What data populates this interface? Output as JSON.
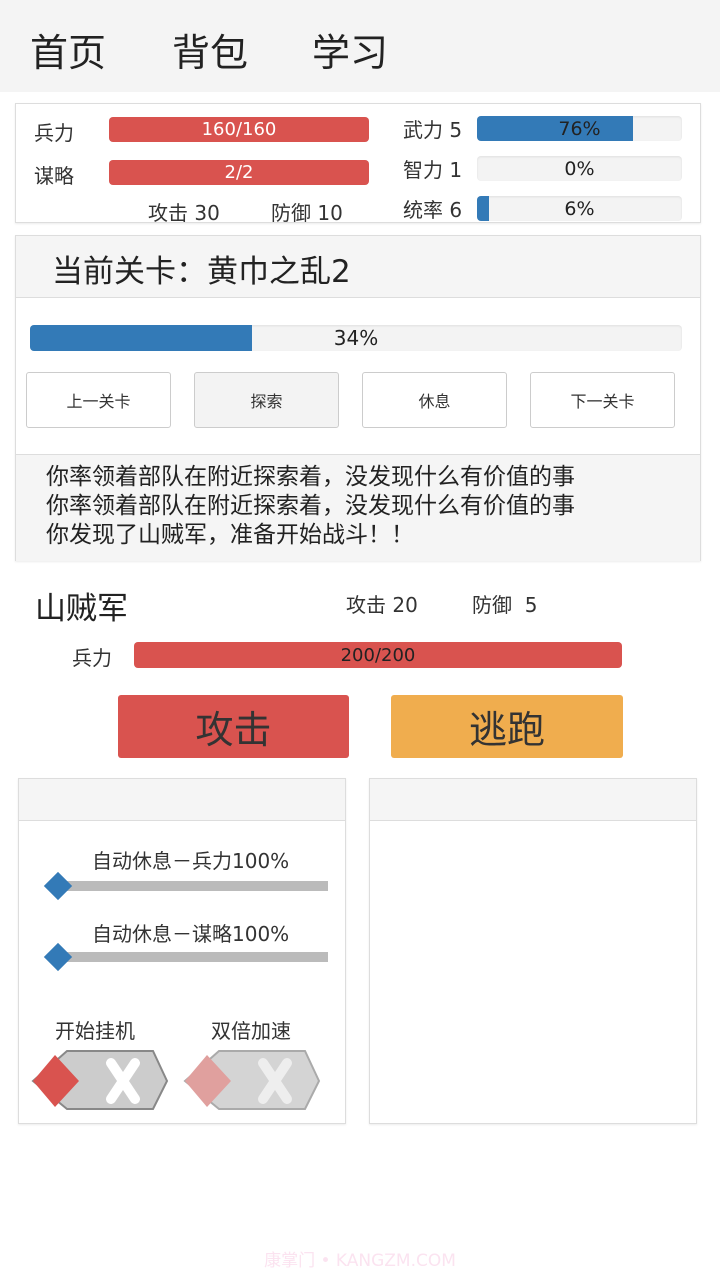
{
  "nav": {
    "tabs": [
      "首页",
      "背包",
      "学习"
    ]
  },
  "player": {
    "troops_label": "兵力",
    "troops": "160/160",
    "troops_pct": 100,
    "strategy_label": "谋略",
    "strategy": "2/2",
    "strategy_pct": 100,
    "attack": "攻击 30",
    "defense": "防御 10",
    "stats": [
      {
        "label": "武力 5",
        "pct_text": "76%",
        "pct": 76
      },
      {
        "label": "智力 1",
        "pct_text": "0%",
        "pct": 0
      },
      {
        "label": "统率 6",
        "pct_text": "6%",
        "pct": 6
      }
    ]
  },
  "stage": {
    "title": "当前关卡：黄巾之乱2",
    "progress_text": "34%",
    "progress": 34,
    "buttons": [
      "上一关卡",
      "探索",
      "休息",
      "下一关卡"
    ],
    "log": [
      "你率领着部队在附近探索着，没发现什么有价值的事",
      "你率领着部队在附近探索着，没发现什么有价值的事",
      "你发现了山贼军，准备开始战斗！！"
    ]
  },
  "enemy": {
    "name": "山贼军",
    "attack": "攻击 20",
    "defense": "防御  5",
    "troops_label": "兵力",
    "troops": "200/200",
    "troops_pct": 100
  },
  "actions": {
    "attack": "攻击",
    "flee": "逃跑"
  },
  "settings": {
    "slider1_label": "自动休息－兵力100%",
    "slider2_label": "自动休息－谋略100%",
    "toggle1_label": "开始挂机",
    "toggle2_label": "双倍加速"
  },
  "colors": {
    "red": "#d9534f",
    "blue": "#337ab7",
    "orange": "#f0ad4e"
  },
  "watermark": "康掌门 • KANGZM.COM"
}
